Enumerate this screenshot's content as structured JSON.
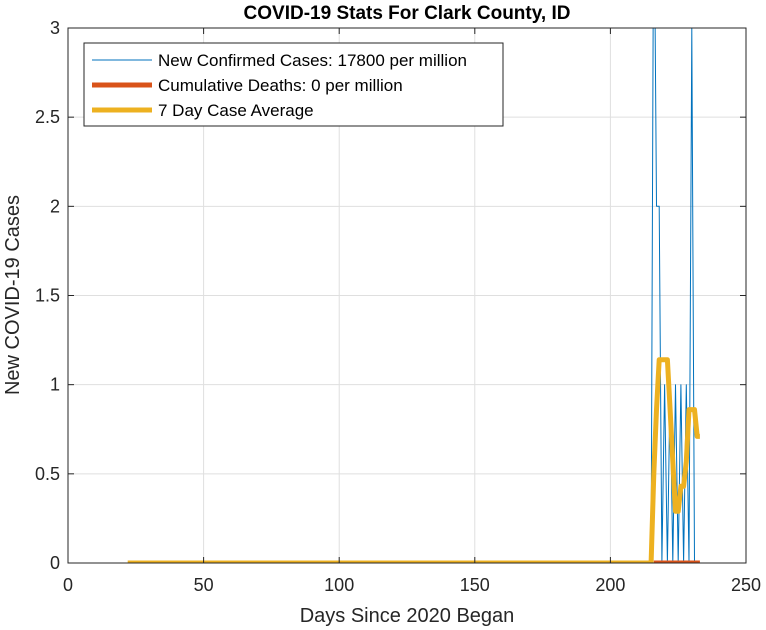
{
  "chart_data": {
    "type": "line",
    "title": "COVID-19 Stats For Clark County, ID",
    "xlabel": "Days Since 2020 Began",
    "ylabel": "New COVID-19 Cases",
    "xlim": [
      0,
      250
    ],
    "ylim": [
      0,
      3
    ],
    "xticks": [
      0,
      50,
      100,
      150,
      200,
      250
    ],
    "yticks": [
      0,
      0.5,
      1,
      1.5,
      2,
      2.5,
      3
    ],
    "xtick_labels": [
      "0",
      "50",
      "100",
      "150",
      "200",
      "250"
    ],
    "ytick_labels": [
      "0",
      "0.5",
      "1",
      "1.5",
      "2",
      "2.5",
      "3"
    ],
    "grid": true,
    "legend_position": "top-left",
    "series": [
      {
        "name": "New Confirmed Cases: 17800 per million",
        "color": "#0072BD",
        "x": [
          22,
          214,
          215,
          216,
          217,
          218,
          219,
          220,
          221,
          222,
          223,
          224,
          225,
          226,
          227,
          228,
          229,
          230,
          231,
          232
        ],
        "y": [
          0,
          0,
          0,
          4,
          2,
          2,
          0,
          1,
          0,
          1,
          0,
          1,
          0,
          1,
          0,
          1,
          0,
          3,
          0,
          0
        ]
      },
      {
        "name": "Cumulative Deaths: 0 per million",
        "color": "#D95319",
        "x": [
          216,
          233
        ],
        "y": [
          0,
          0
        ]
      },
      {
        "name": "7 Day Case Average",
        "color": "#EDB120",
        "x": [
          22,
          215,
          216,
          217,
          218,
          219,
          220,
          221,
          222,
          223,
          224,
          225,
          226,
          227,
          228,
          229,
          230,
          231,
          232,
          233
        ],
        "y": [
          0,
          0,
          0.5,
          0.86,
          1.14,
          1.14,
          1.14,
          1.14,
          0.86,
          0.57,
          0.29,
          0.29,
          0.43,
          0.43,
          0.57,
          0.86,
          0.86,
          0.86,
          0.71,
          0.71
        ]
      }
    ]
  }
}
